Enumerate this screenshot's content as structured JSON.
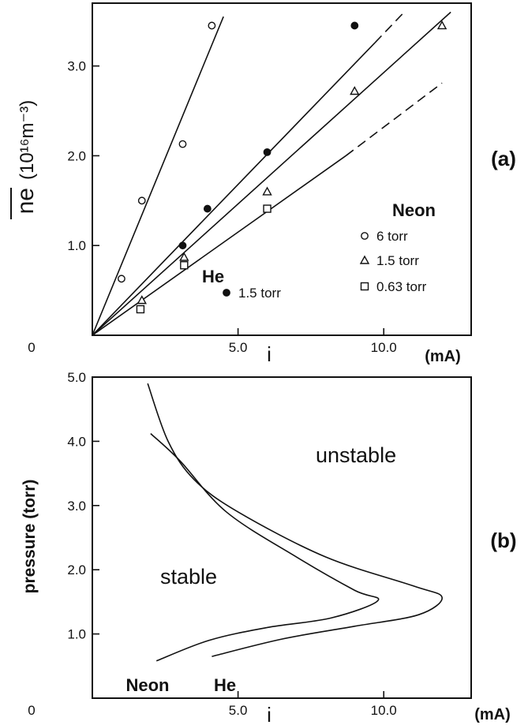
{
  "chart_data": [
    {
      "type": "scatter",
      "panel_label": "(a)",
      "x_unit": "(mA)",
      "xlabel": "i",
      "ylabel_overline": "ne",
      "ylabel_unit": "(10¹⁶m⁻³)",
      "xlim": [
        0,
        13.0
      ],
      "ylim": [
        0,
        3.7
      ],
      "x_ticks": [
        {
          "value": 0,
          "label": "0"
        },
        {
          "value": 5,
          "label": "5.0"
        },
        {
          "value": 10,
          "label": "10.0"
        }
      ],
      "y_ticks": [
        {
          "value": 1,
          "label": "1.0"
        },
        {
          "value": 2,
          "label": "2.0"
        },
        {
          "value": 3,
          "label": "3.0"
        }
      ],
      "legend": {
        "neon_title": "Neon",
        "he_title": "He",
        "placement": "bottom-right"
      },
      "series": [
        {
          "gas": "Neon",
          "label": "6   torr",
          "marker": "circle-open",
          "x": [
            1.0,
            1.7,
            3.1,
            4.1
          ],
          "y": [
            0.63,
            1.5,
            2.13,
            3.45
          ],
          "fit_end": [
            4.5,
            3.55
          ],
          "dash_end": null
        },
        {
          "gas": "He",
          "label": "1.5  torr",
          "marker": "circle-filled",
          "x": [
            3.1,
            3.95,
            6.0,
            9.0
          ],
          "y": [
            1.0,
            1.41,
            2.04,
            3.45
          ],
          "fit_end": [
            9.7,
            3.26
          ],
          "dash_end": [
            10.7,
            3.6
          ]
        },
        {
          "gas": "Neon",
          "label": "1.5  torr",
          "marker": "triangle-open",
          "x": [
            1.7,
            3.15,
            6.0,
            9.0,
            12.0
          ],
          "y": [
            0.39,
            0.87,
            1.6,
            2.72,
            3.45
          ],
          "fit_end": [
            12.3,
            3.6
          ],
          "dash_end": null
        },
        {
          "gas": "Neon",
          "label": "0.63 torr",
          "marker": "square-open",
          "x": [
            1.65,
            3.15,
            6.0
          ],
          "y": [
            0.29,
            0.78,
            1.41
          ],
          "fit_end": [
            8.7,
            2.0
          ],
          "dash_end": [
            12.0,
            2.81
          ]
        }
      ]
    },
    {
      "type": "line",
      "panel_label": "(b)",
      "x_unit": "(mA)",
      "xlabel": "i",
      "ylabel": "pressure   (torr)",
      "xlim": [
        0,
        13.0
      ],
      "ylim": [
        0,
        5.0
      ],
      "x_ticks": [
        {
          "value": 0,
          "label": "0"
        },
        {
          "value": 5,
          "label": "5.0"
        },
        {
          "value": 10,
          "label": "10.0"
        }
      ],
      "y_ticks": [
        {
          "value": 1,
          "label": "1.0"
        },
        {
          "value": 2,
          "label": "2.0"
        },
        {
          "value": 3,
          "label": "3.0"
        },
        {
          "value": 4,
          "label": "4.0"
        },
        {
          "value": 5,
          "label": "5.0"
        }
      ],
      "regions": {
        "upper": "unstable",
        "lower": "stable"
      },
      "series": [
        {
          "name": "Neon",
          "x": [
            2.2,
            4.0,
            6.0,
            8.2,
            9.8,
            9.0,
            7.0,
            4.6,
            3.0,
            2.0
          ],
          "y": [
            0.58,
            0.9,
            1.1,
            1.25,
            1.52,
            1.68,
            2.2,
            2.9,
            3.7,
            4.12
          ]
        },
        {
          "name": "He",
          "x": [
            4.1,
            6.5,
            9.0,
            11.2,
            12.0,
            11.0,
            8.0,
            5.0,
            3.5,
            2.6,
            1.9
          ],
          "y": [
            0.65,
            0.92,
            1.12,
            1.3,
            1.57,
            1.75,
            2.2,
            2.9,
            3.4,
            4.0,
            4.9
          ]
        }
      ]
    }
  ]
}
